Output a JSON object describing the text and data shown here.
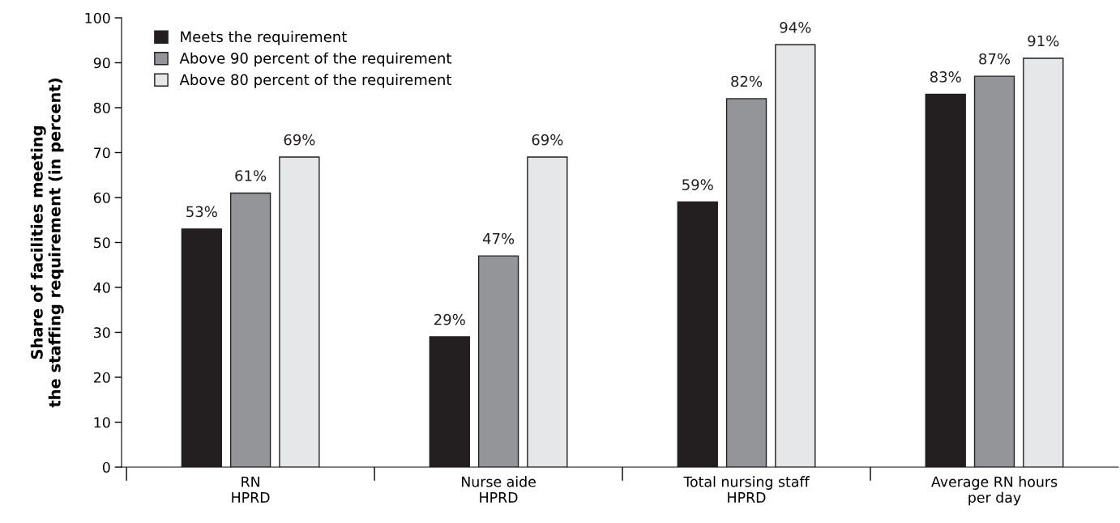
{
  "chart_data": {
    "type": "bar",
    "ylabel": "Share of facilities meeting\nthe staffing requirement (in percent)",
    "categories": [
      "RN\nHPRD",
      "Nurse aide\nHPRD",
      "Total nursing staff\nHPRD",
      "Average RN hours\nper day"
    ],
    "series": [
      {
        "name": "Meets the requirement",
        "color": "#231f20",
        "values": [
          53,
          29,
          59,
          83
        ],
        "value_labels": [
          "53%",
          "29%",
          "59%",
          "83%"
        ]
      },
      {
        "name": "Above 90 percent of the requirement",
        "color": "#939598",
        "values": [
          61,
          47,
          82,
          87
        ],
        "value_labels": [
          "61%",
          "47%",
          "82%",
          "87%"
        ]
      },
      {
        "name": "Above 80 percent of the requirement",
        "color": "#e6e7e8",
        "values": [
          69,
          69,
          94,
          91
        ],
        "value_labels": [
          "69%",
          "69%",
          "94%",
          "91%"
        ]
      }
    ],
    "ylim": [
      0,
      100
    ],
    "yticks": [
      0,
      10,
      20,
      30,
      40,
      50,
      60,
      70,
      80,
      90,
      100
    ],
    "grid": false,
    "legend": "top left"
  }
}
